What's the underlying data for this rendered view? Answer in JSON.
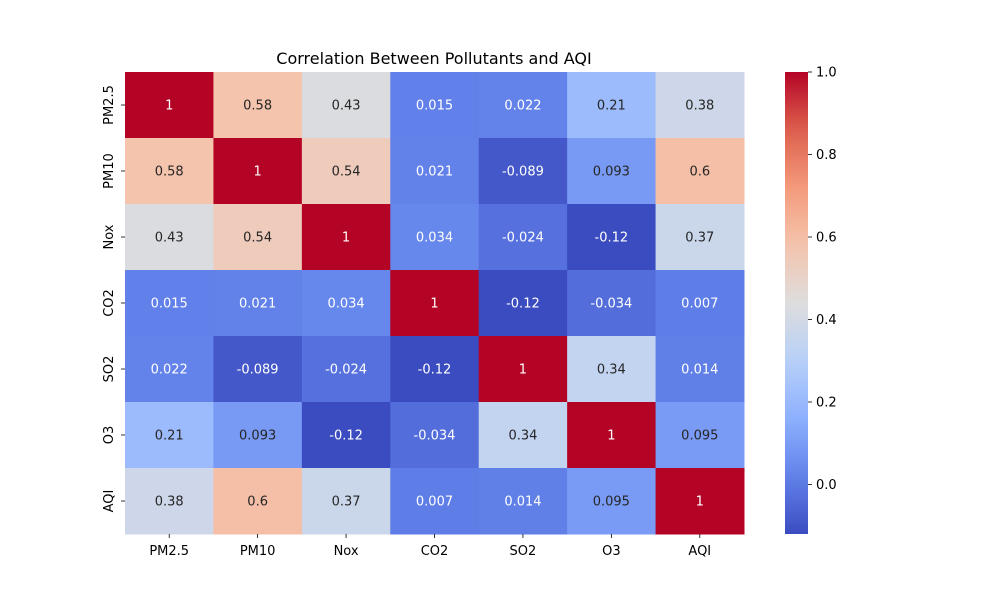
{
  "chart_data": {
    "type": "heatmap",
    "title": "Correlation Between Pollutants and AQI",
    "x_labels": [
      "PM2.5",
      "PM10",
      "Nox",
      "CO2",
      "SO2",
      "O3",
      "AQI"
    ],
    "y_labels": [
      "PM2.5",
      "PM10",
      "Nox",
      "CO2",
      "SO2",
      "O3",
      "AQI"
    ],
    "values": [
      [
        1,
        0.58,
        0.43,
        0.015,
        0.022,
        0.21,
        0.38
      ],
      [
        0.58,
        1,
        0.54,
        0.021,
        -0.089,
        0.093,
        0.6
      ],
      [
        0.43,
        0.54,
        1,
        0.034,
        -0.024,
        -0.12,
        0.37
      ],
      [
        0.015,
        0.021,
        0.034,
        1,
        -0.12,
        -0.034,
        0.007
      ],
      [
        0.022,
        -0.089,
        -0.024,
        -0.12,
        1,
        0.34,
        0.014
      ],
      [
        0.21,
        0.093,
        -0.12,
        -0.034,
        0.34,
        1,
        0.095
      ],
      [
        0.38,
        0.6,
        0.37,
        0.007,
        0.014,
        0.095,
        1
      ]
    ],
    "colormap": "coolwarm",
    "vmin": -0.12,
    "vmax": 1.0,
    "colorbar_ticks": [
      "0.0",
      "0.2",
      "0.4",
      "0.6",
      "0.8",
      "1.0"
    ],
    "annotations": true,
    "grid": false,
    "legend": "colorbar-right"
  }
}
